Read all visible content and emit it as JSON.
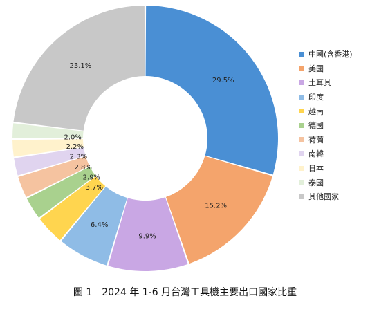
{
  "chart_data": {
    "type": "pie",
    "variant": "donut",
    "categories": [
      "中國(含香港)",
      "美國",
      "土耳其",
      "印度",
      "越南",
      "德國",
      "荷蘭",
      "南韓",
      "日本",
      "泰國",
      "其他國家"
    ],
    "values": [
      29.5,
      15.2,
      9.9,
      6.4,
      3.7,
      2.9,
      2.8,
      2.3,
      2.2,
      2.0,
      23.1
    ],
    "value_labels": [
      "29.5%",
      "15.2%",
      "9.9%",
      "6.4%",
      "3.7%",
      "2.9%",
      "2.8%",
      "2.3%",
      "2.2%",
      "2.0%",
      "23.1%"
    ],
    "unit": "%",
    "colors": [
      "#4a8fd4",
      "#f4a46c",
      "#c9a7e4",
      "#8fbce6",
      "#ffd54f",
      "#a9d18e",
      "#f5c3a0",
      "#e0d4ef",
      "#fff2cc",
      "#e2efda",
      "#c8c8c8"
    ],
    "start_angle_deg": 0,
    "direction": "clockwise",
    "legend_position": "right",
    "title": "圖 1　2024 年 1-6 月台灣工具機主要出口國家比重"
  }
}
